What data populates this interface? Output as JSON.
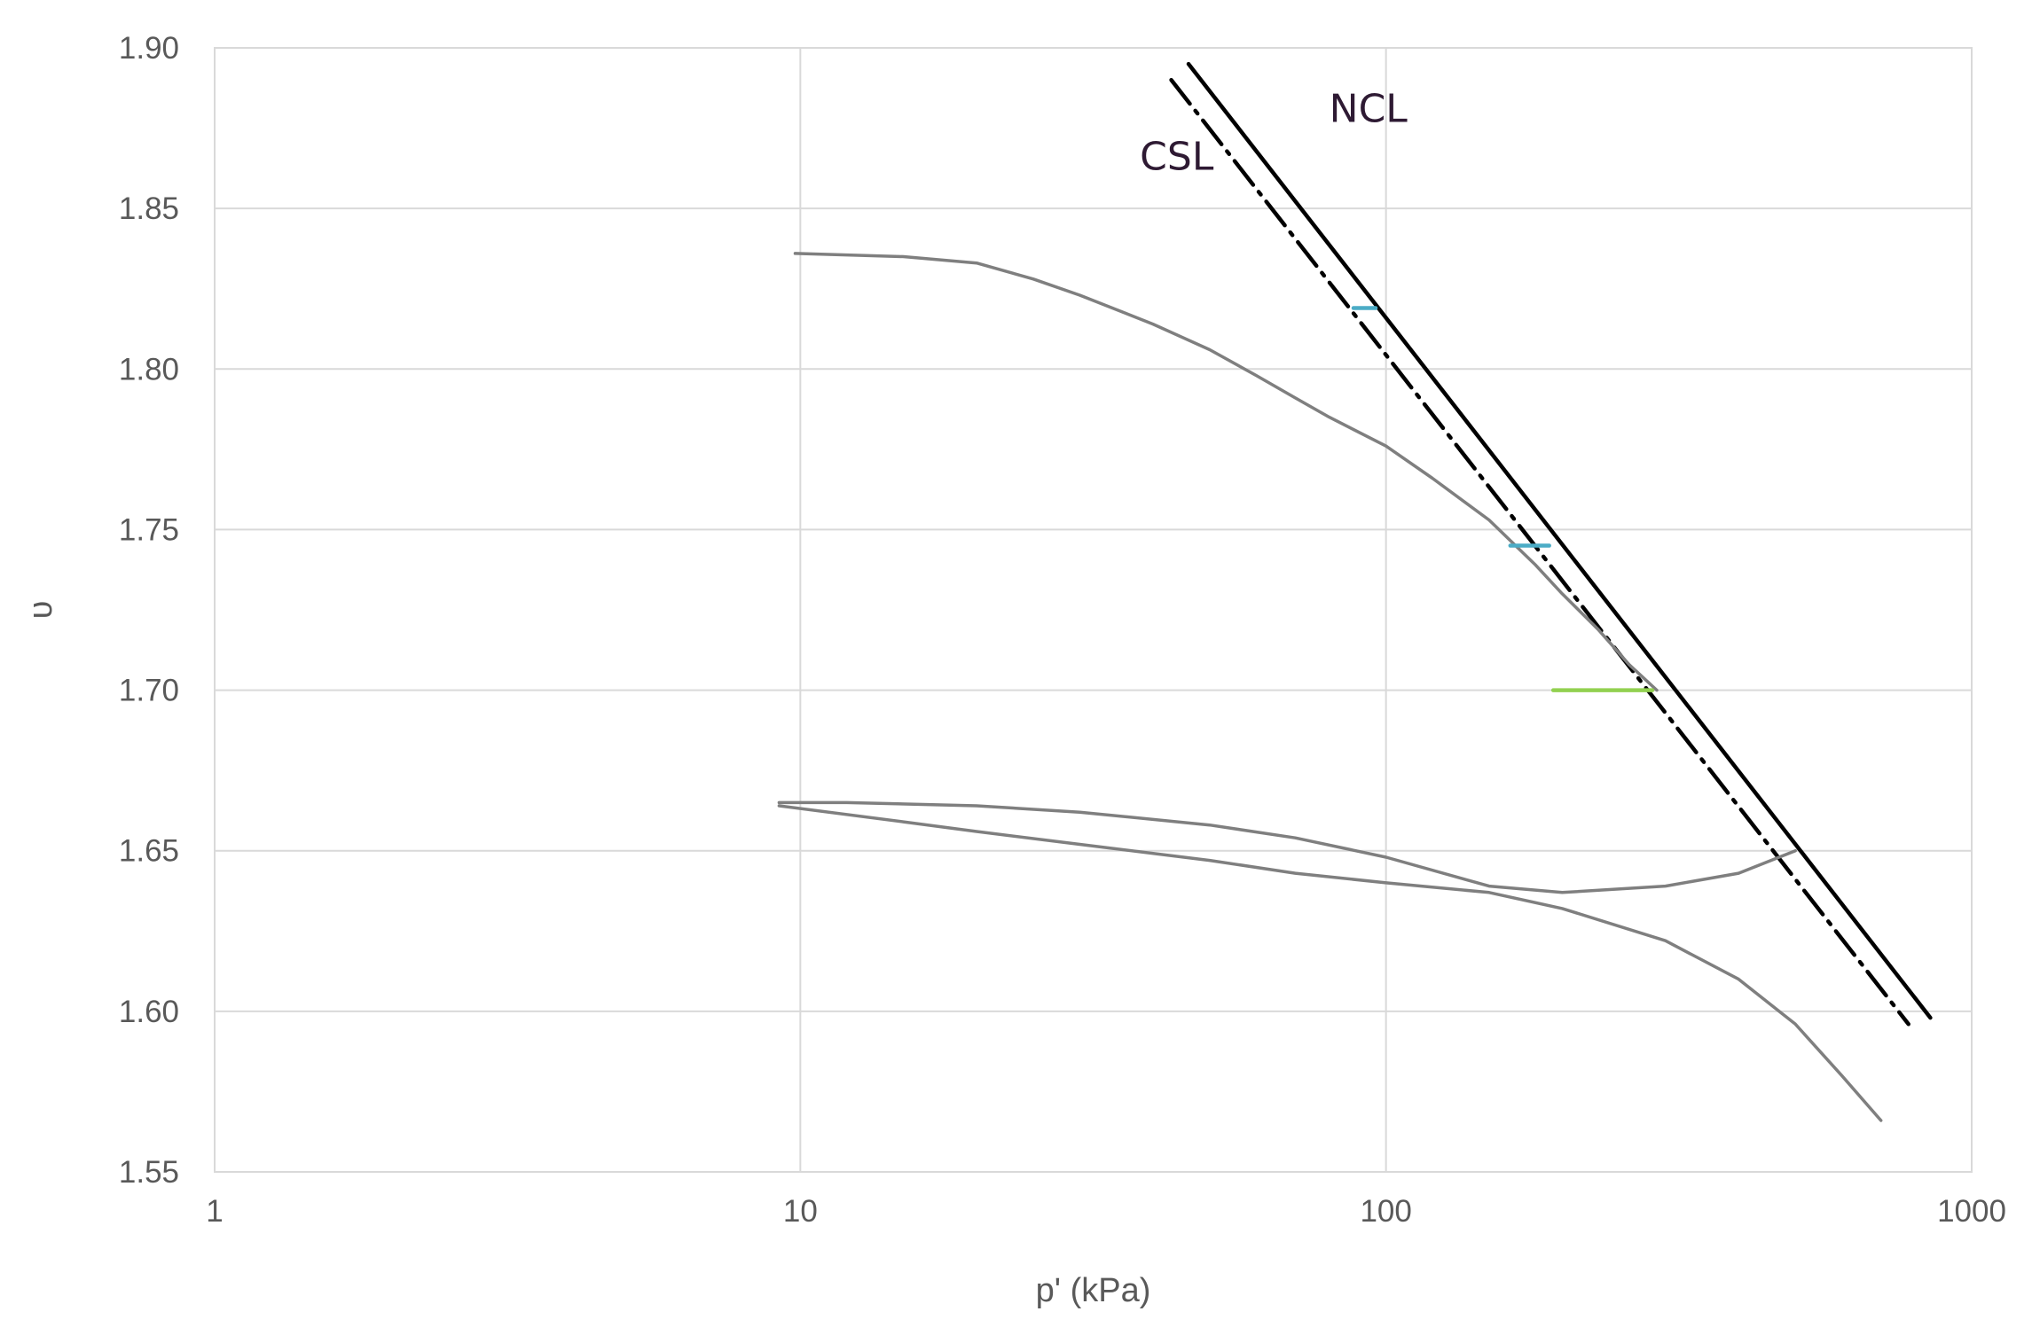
{
  "chart_data": {
    "type": "line",
    "title": "",
    "xlabel": "p' (kPa)",
    "ylabel": "υ",
    "x_scale": "log",
    "xlim": [
      1,
      1000
    ],
    "ylim": [
      1.55,
      1.9
    ],
    "x_ticks": [
      1,
      10,
      100,
      1000
    ],
    "x_tick_labels": [
      "1",
      "10",
      "100",
      "1000"
    ],
    "y_ticks": [
      1.55,
      1.6,
      1.65,
      1.7,
      1.75,
      1.8,
      1.85,
      1.9
    ],
    "y_tick_labels": [
      "1.55",
      "1.60",
      "1.65",
      "1.70",
      "1.75",
      "1.80",
      "1.85",
      "1.90"
    ],
    "grid": true,
    "legend": "none",
    "annotations": [
      {
        "text": "NCL",
        "x": 80,
        "y": 1.877
      },
      {
        "text": "CSL",
        "x": 38,
        "y": 1.862
      }
    ],
    "series": [
      {
        "name": "NCL",
        "color": "#000000",
        "style": "solid",
        "x": [
          46,
          850
        ],
        "y": [
          1.895,
          1.598
        ]
      },
      {
        "name": "CSL",
        "color": "#000000",
        "style": "dashdot",
        "x": [
          43,
          780
        ],
        "y": [
          1.89,
          1.596
        ]
      },
      {
        "color": "#7f7f7f",
        "style": "solid",
        "x": [
          9.8,
          15,
          20,
          25,
          30,
          40,
          50,
          60,
          70,
          80,
          100,
          120,
          150,
          180,
          200,
          230,
          260,
          290
        ],
        "y": [
          1.836,
          1.835,
          1.833,
          1.828,
          1.823,
          1.814,
          1.806,
          1.798,
          1.791,
          1.785,
          1.776,
          1.766,
          1.753,
          1.739,
          1.73,
          1.719,
          1.708,
          1.7
        ]
      },
      {
        "color": "#7f7f7f",
        "style": "solid",
        "x": [
          9.2,
          12,
          20,
          30,
          50,
          70,
          100,
          150,
          200,
          300,
          400,
          500
        ],
        "y": [
          1.665,
          1.665,
          1.664,
          1.662,
          1.658,
          1.654,
          1.648,
          1.639,
          1.637,
          1.639,
          1.643,
          1.65
        ]
      },
      {
        "color": "#7f7f7f",
        "style": "solid",
        "x": [
          9.2,
          15,
          20,
          30,
          50,
          70,
          100,
          150,
          200,
          300,
          400,
          500,
          600,
          700
        ],
        "y": [
          1.664,
          1.659,
          1.656,
          1.652,
          1.647,
          1.643,
          1.64,
          1.637,
          1.632,
          1.622,
          1.61,
          1.596,
          1.58,
          1.566
        ]
      },
      {
        "color": "#4bacc6",
        "style": "solid",
        "x": [
          88,
          96
        ],
        "y": [
          1.819,
          1.819
        ]
      },
      {
        "color": "#4bacc6",
        "style": "solid",
        "x": [
          163,
          190
        ],
        "y": [
          1.745,
          1.745
        ]
      },
      {
        "color": "#92d050",
        "style": "solid",
        "x": [
          193,
          285
        ],
        "y": [
          1.7,
          1.7
        ]
      }
    ]
  }
}
